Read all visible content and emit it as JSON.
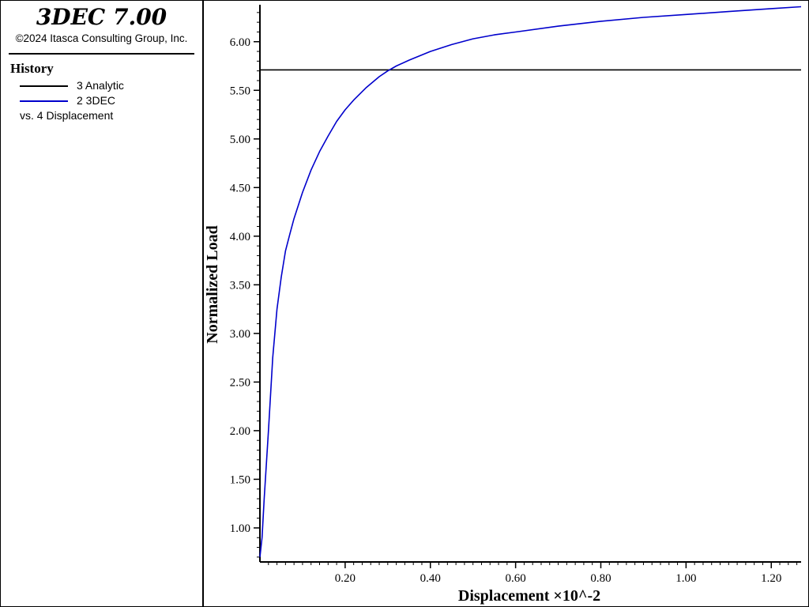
{
  "app": {
    "title": "3DEC 7.00",
    "copyright": "©2024 Itasca Consulting Group, Inc."
  },
  "legend": {
    "heading": "History",
    "entries": [
      {
        "label": "3 Analytic",
        "color": "#000000"
      },
      {
        "label": "2 3DEC",
        "color": "#0000cc"
      }
    ],
    "vs_label": "vs. 4 Displacement"
  },
  "chart_data": {
    "type": "line",
    "xlabel": "Displacement ×10^-2",
    "ylabel": "Normalized Load",
    "xlim": [
      0.0,
      1.27
    ],
    "ylim": [
      0.65,
      6.38
    ],
    "x_ticks": [
      0.2,
      0.4,
      0.6,
      0.8,
      1.0,
      1.2
    ],
    "x_tick_labels": [
      "0.20",
      "0.40",
      "0.60",
      "0.80",
      "1.00",
      "1.20"
    ],
    "y_ticks": [
      1.0,
      1.5,
      2.0,
      2.5,
      3.0,
      3.5,
      4.0,
      4.5,
      5.0,
      5.5,
      6.0
    ],
    "y_tick_labels": [
      "1.00",
      "1.50",
      "2.00",
      "2.50",
      "3.00",
      "3.50",
      "4.00",
      "4.50",
      "5.00",
      "5.50",
      "6.00"
    ],
    "grid": false,
    "series": [
      {
        "name": "3 Analytic",
        "color": "#000000",
        "x": [
          0.0,
          1.27
        ],
        "y": [
          5.71,
          5.71
        ]
      },
      {
        "name": "2 3DEC",
        "color": "#0000cc",
        "x": [
          0.0,
          0.005,
          0.01,
          0.02,
          0.03,
          0.04,
          0.05,
          0.06,
          0.07,
          0.08,
          0.1,
          0.12,
          0.14,
          0.16,
          0.18,
          0.2,
          0.22,
          0.25,
          0.28,
          0.3,
          0.32,
          0.35,
          0.4,
          0.45,
          0.5,
          0.55,
          0.6,
          0.7,
          0.8,
          0.9,
          1.0,
          1.1,
          1.2,
          1.27
        ],
        "y": [
          0.7,
          0.9,
          1.3,
          2.0,
          2.75,
          3.25,
          3.58,
          3.85,
          4.02,
          4.18,
          4.45,
          4.68,
          4.87,
          5.03,
          5.18,
          5.3,
          5.4,
          5.53,
          5.64,
          5.7,
          5.75,
          5.81,
          5.9,
          5.97,
          6.03,
          6.07,
          6.1,
          6.16,
          6.21,
          6.25,
          6.28,
          6.31,
          6.34,
          6.36
        ]
      }
    ]
  }
}
